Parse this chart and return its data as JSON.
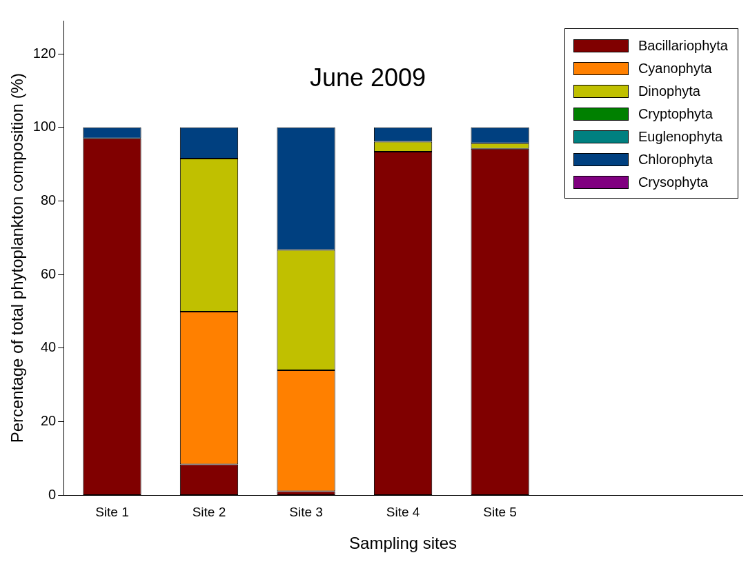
{
  "chart_data": {
    "type": "bar",
    "title": "June 2009",
    "xlabel": "Sampling sites",
    "ylabel": "Percentage of total phytoplankton composition (%)",
    "categories": [
      "Site 1",
      "Site 2",
      "Site 3",
      "Site 4",
      "Site 5",
      null,
      null
    ],
    "stacked": true,
    "ylim": [
      0,
      129
    ],
    "yticks": [
      0,
      20,
      40,
      60,
      80,
      100,
      120
    ],
    "grid": false,
    "legend": "top right",
    "series": [
      {
        "name": "Bacillariophyta",
        "color": "#800000",
        "values": [
          97,
          8.4,
          1.1,
          93.4,
          94.2,
          null,
          null
        ]
      },
      {
        "name": "Cyanophyta",
        "color": "#ff8000",
        "values": [
          0,
          41.5,
          32.9,
          0,
          0,
          null,
          null
        ]
      },
      {
        "name": "Dinophyta",
        "color": "#c0c000",
        "values": [
          0,
          41.6,
          32.7,
          2.7,
          1.5,
          null,
          null
        ]
      },
      {
        "name": "Cryptophyta",
        "color": "#008000",
        "values": [
          0,
          0,
          0,
          0,
          0,
          null,
          null
        ]
      },
      {
        "name": "Euglenophyta",
        "color": "#008080",
        "values": [
          0,
          0,
          0,
          0,
          0,
          null,
          null
        ]
      },
      {
        "name": "Chlorophyta",
        "color": "#004080",
        "values": [
          3,
          8.5,
          33.3,
          3.9,
          4.3,
          null,
          null
        ]
      },
      {
        "name": "Crysophyta",
        "color": "#800080",
        "values": [
          0,
          0,
          0,
          0,
          0,
          null,
          null
        ]
      }
    ]
  }
}
